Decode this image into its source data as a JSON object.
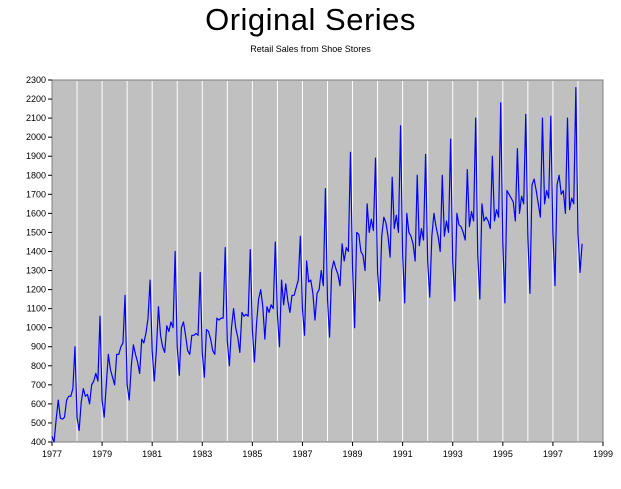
{
  "chart_data": {
    "type": "line",
    "title": "Original Series",
    "subtitle": "Retail Sales from Shoe Stores",
    "xlabel": "",
    "ylabel": "",
    "xlim": [
      1977,
      1999
    ],
    "ylim": [
      400,
      2300
    ],
    "x_ticks": [
      "1977",
      "1979",
      "1981",
      "1983",
      "1985",
      "1987",
      "1989",
      "1991",
      "1993",
      "1995",
      "1997",
      "1999"
    ],
    "y_ticks": [
      "400",
      "500",
      "600",
      "700",
      "800",
      "900",
      "1000",
      "1100",
      "1200",
      "1300",
      "1400",
      "1500",
      "1600",
      "1700",
      "1800",
      "1900",
      "2000",
      "2100",
      "2200",
      "2300"
    ],
    "grid": "vertical-lines",
    "series": [
      {
        "color": "#0000ff",
        "x_start": 1977.0,
        "x_step": 0.08333,
        "values": [
          430,
          400,
          520,
          620,
          525,
          520,
          530,
          620,
          640,
          640,
          680,
          900,
          530,
          460,
          610,
          680,
          640,
          650,
          600,
          700,
          720,
          760,
          720,
          1060,
          620,
          530,
          700,
          860,
          780,
          740,
          700,
          860,
          860,
          900,
          920,
          1170,
          700,
          620,
          800,
          910,
          860,
          820,
          760,
          940,
          920,
          970,
          1050,
          1250,
          880,
          720,
          880,
          1110,
          960,
          900,
          870,
          1010,
          980,
          1030,
          1000,
          1400,
          900,
          750,
          1000,
          1030,
          960,
          880,
          860,
          960,
          960,
          970,
          960,
          1290,
          870,
          740,
          990,
          980,
          940,
          880,
          860,
          1050,
          1040,
          1050,
          1050,
          1420,
          930,
          800,
          1000,
          1100,
          1000,
          950,
          870,
          1080,
          1060,
          1070,
          1060,
          1410,
          990,
          820,
          1020,
          1150,
          1200,
          1110,
          940,
          1110,
          1080,
          1120,
          1100,
          1450,
          1070,
          900,
          1250,
          1120,
          1230,
          1140,
          1080,
          1170,
          1170,
          1210,
          1250,
          1480,
          1100,
          960,
          1350,
          1240,
          1250,
          1180,
          1040,
          1180,
          1200,
          1300,
          1220,
          1730,
          1150,
          950,
          1300,
          1350,
          1310,
          1280,
          1220,
          1440,
          1350,
          1420,
          1400,
          1920,
          1320,
          1000,
          1500,
          1490,
          1400,
          1380,
          1300,
          1650,
          1500,
          1570,
          1510,
          1890,
          1290,
          1140,
          1480,
          1580,
          1550,
          1480,
          1370,
          1790,
          1520,
          1590,
          1500,
          2060,
          1390,
          1130,
          1600,
          1500,
          1480,
          1440,
          1350,
          1800,
          1430,
          1520,
          1460,
          1910,
          1350,
          1160,
          1480,
          1600,
          1530,
          1480,
          1400,
          1800,
          1480,
          1560,
          1500,
          1990,
          1350,
          1140,
          1600,
          1540,
          1530,
          1500,
          1460,
          1830,
          1530,
          1610,
          1560,
          2100,
          1380,
          1150,
          1650,
          1560,
          1580,
          1560,
          1520,
          1900,
          1560,
          1620,
          1580,
          2180,
          1450,
          1130,
          1720,
          1700,
          1680,
          1660,
          1560,
          1940,
          1600,
          1690,
          1650,
          2120,
          1480,
          1180,
          1750,
          1780,
          1720,
          1650,
          1580,
          2100,
          1650,
          1720,
          1680,
          2110,
          1500,
          1220,
          1750,
          1800,
          1700,
          1720,
          1600,
          2100,
          1620,
          1680,
          1650,
          2260,
          1500,
          1290,
          1440
        ]
      }
    ]
  }
}
